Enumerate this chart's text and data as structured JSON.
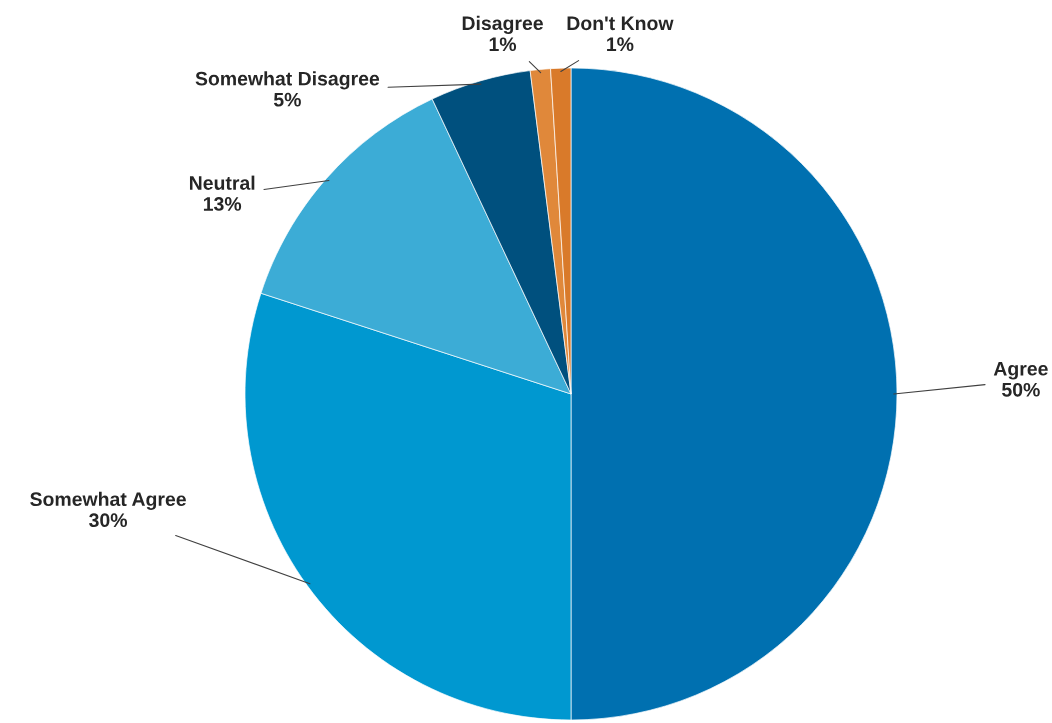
{
  "chart_data": {
    "type": "pie",
    "categories": [
      "Agree",
      "Somewhat Agree",
      "Neutral",
      "Somewhat Disagree",
      "Disagree",
      "Don't Know"
    ],
    "values": [
      50,
      30,
      13,
      5,
      1,
      1
    ],
    "value_labels": [
      "50%",
      "30%",
      "13%",
      "5%",
      "1%",
      "1%"
    ],
    "colors": [
      "#0070b0",
      "#0098d0",
      "#3cacd6",
      "#00507e",
      "#e0883a",
      "#d97a2a"
    ],
    "legend": false
  }
}
